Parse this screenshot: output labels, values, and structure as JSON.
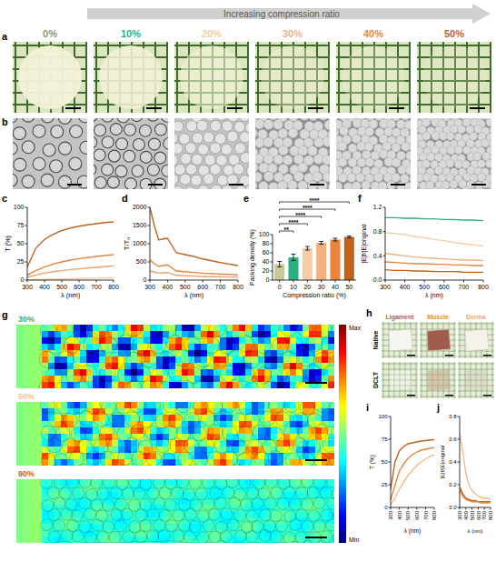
{
  "figure": {
    "arrow_label": "Increasing compression ratio",
    "a": {
      "letter": "a",
      "labels": [
        "0%",
        "10%",
        "20%",
        "30%",
        "40%",
        "50%"
      ],
      "label_colors": [
        "#8c9a5b",
        "#2bb07f",
        "#f5cca4",
        "#f2b07f",
        "#e8843c",
        "#c0621c"
      ]
    },
    "b": {
      "letter": "b"
    },
    "g": {
      "letter": "g",
      "labels": [
        "30%",
        "50%",
        "90%"
      ],
      "label_colors": [
        "#2bb07f",
        "#f2c39a",
        "#c0621c"
      ],
      "colorbar": [
        "Max",
        "Min"
      ]
    },
    "h": {
      "letter": "h",
      "columns": [
        "Ligament",
        "Muscle",
        "Derma"
      ],
      "column_colors": [
        "#c0621c",
        "#e8843c",
        "#f2a56a"
      ],
      "rows": [
        "Native",
        "DCLT"
      ]
    }
  },
  "chart_data": [
    {
      "type": "line",
      "panel": "c",
      "x_label": "λ (nm)",
      "y_label": "T (%)",
      "x": [
        300,
        350,
        400,
        450,
        500,
        550,
        600,
        650,
        700,
        750,
        800
      ],
      "xlim": [
        300,
        800
      ],
      "ylim": [
        0,
        100
      ],
      "xticks": [
        300,
        400,
        500,
        600,
        700,
        800
      ],
      "yticks": [
        0,
        25,
        50,
        75,
        100
      ],
      "series": [
        {
          "color": "#f5cca4",
          "values": [
            0.3,
            0.6,
            0.9,
            1.2,
            1.5,
            1.8,
            2.1,
            2.4,
            2.7,
            3,
            3.2
          ]
        },
        {
          "color": "#f0a266",
          "values": [
            4,
            7,
            9.5,
            11.5,
            13,
            14.5,
            15.5,
            16.5,
            17.5,
            18.5,
            19.5
          ]
        },
        {
          "color": "#e8843c",
          "values": [
            7,
            13,
            18,
            22,
            25,
            27.5,
            29.5,
            31,
            32.5,
            33.8,
            35
          ]
        },
        {
          "color": "#c0621c",
          "values": [
            18,
            44,
            56,
            63,
            68,
            71.5,
            74,
            76,
            77.5,
            79,
            80
          ]
        }
      ]
    },
    {
      "type": "line",
      "panel": "d",
      "x_label": "λ (nm)",
      "y_label": "T/T₀",
      "x": [
        300,
        325,
        350,
        375,
        400,
        450,
        500,
        550,
        600,
        650,
        700,
        750,
        800
      ],
      "xlim": [
        300,
        800
      ],
      "ylim": [
        0,
        2000
      ],
      "xticks": [
        300,
        400,
        500,
        600,
        700,
        800
      ],
      "yticks": [
        0,
        500,
        1000,
        1500,
        2000
      ],
      "series": [
        {
          "color": "#f0a266",
          "values": [
            250,
            220,
            190,
            200,
            210,
            130,
            120,
            110,
            100,
            95,
            90,
            85,
            80
          ]
        },
        {
          "color": "#e8843c",
          "values": [
            560,
            450,
            380,
            400,
            420,
            250,
            230,
            210,
            190,
            180,
            165,
            155,
            145
          ]
        },
        {
          "color": "#c0621c",
          "values": [
            2000,
            1500,
            1100,
            1130,
            1150,
            750,
            700,
            650,
            580,
            530,
            480,
            440,
            400
          ]
        }
      ]
    },
    {
      "type": "bar",
      "panel": "e",
      "x_label": "Compression ratio (%)",
      "y_label": "Packing density (%)",
      "categories": [
        "0",
        "10",
        "20",
        "30",
        "40",
        "50"
      ],
      "values": [
        35,
        50,
        70,
        82,
        89,
        95
      ],
      "errors": [
        6,
        7,
        4,
        3,
        3,
        2
      ],
      "colors": [
        "#c5c99e",
        "#2bb07f",
        "#f5cca4",
        "#f2b07f",
        "#e8843c",
        "#c0621c"
      ],
      "ylim": [
        0,
        100
      ],
      "yticks": [
        0,
        20,
        40,
        60,
        80,
        100
      ],
      "annotations": [
        {
          "from": "0",
          "to": "10",
          "label": "**"
        },
        {
          "from": "0",
          "to": "20",
          "label": "****"
        },
        {
          "from": "0",
          "to": "30",
          "label": "****"
        },
        {
          "from": "0",
          "to": "40",
          "label": "****"
        },
        {
          "from": "0",
          "to": "50",
          "label": "****"
        }
      ]
    },
    {
      "type": "line",
      "panel": "f",
      "x_label": "λ (nm)",
      "y_label": "|E|f/|E|original",
      "x": [
        300,
        350,
        400,
        450,
        500,
        550,
        600,
        650,
        700,
        750,
        800
      ],
      "xlim": [
        300,
        800
      ],
      "ylim": [
        0,
        1.2
      ],
      "xticks": [
        300,
        400,
        500,
        600,
        700,
        800
      ],
      "yticks": [
        {
          "value": 0,
          "label": "0.0"
        },
        0.4,
        0.8,
        1.2
      ],
      "series": [
        {
          "color": "#2bb07f",
          "values": [
            1.03,
            1.03,
            1.02,
            1.02,
            1.01,
            1.01,
            1.0,
            1.0,
            0.99,
            0.99,
            0.98
          ]
        },
        {
          "color": "#f5cca4",
          "values": [
            0.78,
            0.77,
            0.75,
            0.72,
            0.7,
            0.67,
            0.65,
            0.62,
            0.6,
            0.58,
            0.56
          ]
        },
        {
          "color": "#f2b07f",
          "values": [
            0.44,
            0.42,
            0.4,
            0.38,
            0.37,
            0.36,
            0.35,
            0.34,
            0.33,
            0.33,
            0.32
          ]
        },
        {
          "color": "#e8843c",
          "values": [
            0.3,
            0.29,
            0.28,
            0.27,
            0.27,
            0.26,
            0.26,
            0.25,
            0.25,
            0.24,
            0.24
          ]
        },
        {
          "color": "#c0621c",
          "values": [
            0.17,
            0.16,
            0.16,
            0.15,
            0.15,
            0.14,
            0.14,
            0.14,
            0.13,
            0.13,
            0.13
          ]
        }
      ]
    },
    {
      "type": "line",
      "panel": "i",
      "x_label": "λ (nm)",
      "y_label": "T (%)",
      "x": [
        300,
        350,
        400,
        450,
        500,
        550,
        600,
        650,
        700,
        750,
        800
      ],
      "xlim": [
        300,
        800
      ],
      "ylim": [
        0,
        100
      ],
      "xticks": [
        300,
        400,
        500,
        600,
        700,
        800
      ],
      "yticks": [
        0,
        25,
        50,
        75,
        100
      ],
      "series": [
        {
          "color": "#c0621c",
          "values": [
            20,
            50,
            62,
            67,
            70,
            71,
            72,
            73,
            73.5,
            74,
            74.5
          ]
        },
        {
          "color": "#e8843c",
          "values": [
            8,
            25,
            40,
            48,
            54,
            58,
            61,
            63,
            64,
            65,
            66
          ]
        },
        {
          "color": "#f4b98a",
          "values": [
            3,
            10,
            20,
            28,
            35,
            41,
            46,
            50,
            53,
            56,
            58
          ]
        }
      ]
    },
    {
      "type": "line",
      "panel": "j",
      "x_label": "λ (nm)",
      "y_label": "|E|f/|E|original",
      "x": [
        300,
        350,
        400,
        450,
        500,
        550,
        600,
        650,
        700,
        750,
        800
      ],
      "xlim": [
        300,
        800
      ],
      "ylim": [
        0,
        0.8
      ],
      "xticks": [
        300,
        400,
        500,
        600,
        700,
        800
      ],
      "yticks": [
        {
          "value": 0,
          "label": "0.0"
        },
        0.2,
        0.4,
        0.6,
        0.8
      ],
      "series": [
        {
          "color": "#f4b98a",
          "values": [
            0.65,
            0.5,
            0.3,
            0.2,
            0.15,
            0.12,
            0.1,
            0.09,
            0.08,
            0.08,
            0.07
          ]
        },
        {
          "color": "#c0621c",
          "values": [
            0.18,
            0.12,
            0.08,
            0.07,
            0.06,
            0.06,
            0.05,
            0.05,
            0.05,
            0.05,
            0.05
          ]
        },
        {
          "color": "#e8843c",
          "values": [
            0.15,
            0.1,
            0.07,
            0.06,
            0.05,
            0.05,
            0.05,
            0.04,
            0.04,
            0.04,
            0.04
          ]
        }
      ]
    }
  ]
}
